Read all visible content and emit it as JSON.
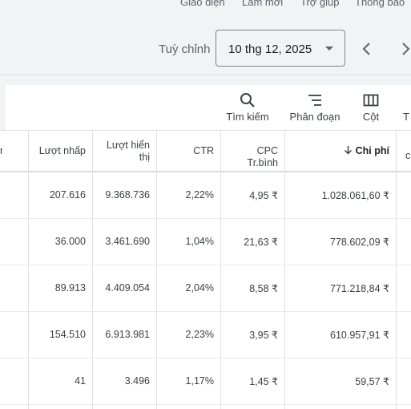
{
  "header": {
    "top_nav": [
      "Giao diện",
      "Làm mới",
      "Trợ giúp",
      "Thông báo"
    ],
    "customize_label": "Tuỳ chỉnh",
    "date_value": "10 thg 12, 2025"
  },
  "toolbar": {
    "search_label": "Tìm kiếm",
    "segment_label": "Phân đoạn",
    "columns_label": "Cột",
    "partial_label": "T"
  },
  "table": {
    "left_partial_header": "n",
    "headers": {
      "clicks": "Lượt nhấp",
      "impressions_1": "Lượt hiển",
      "impressions_2": "thị",
      "ctr": "CTR",
      "cpc": "CPC Tr.bình",
      "cost": "Chi phí",
      "partial": "c"
    },
    "rows": [
      {
        "clicks": "207.616",
        "impressions": "9.368.736",
        "ctr": "2,22%",
        "cpc": "4,95 ₹",
        "cost": "1.028.061,60 ₹"
      },
      {
        "clicks": "36.000",
        "impressions": "3.461.690",
        "ctr": "1,04%",
        "cpc": "21,63 ₹",
        "cost": "778.602,09 ₹"
      },
      {
        "clicks": "89.913",
        "impressions": "4.409.054",
        "ctr": "2,04%",
        "cpc": "8,58 ₹",
        "cost": "771.218,84 ₹"
      },
      {
        "clicks": "154.510",
        "impressions": "6.913.981",
        "ctr": "2,23%",
        "cpc": "3,95 ₹",
        "cost": "610.957,91 ₹"
      },
      {
        "clicks": "41",
        "impressions": "3.496",
        "ctr": "1,17%",
        "cpc": "1,45 ₹",
        "cost": "59,57 ₹"
      }
    ]
  },
  "icons": {
    "search": "search-icon",
    "segment": "segment-icon",
    "columns": "columns-icon",
    "sort": "arrow-down-icon",
    "prev": "chevron-left-icon",
    "next": "chevron-right-icon",
    "caret": "caret-down-icon"
  }
}
